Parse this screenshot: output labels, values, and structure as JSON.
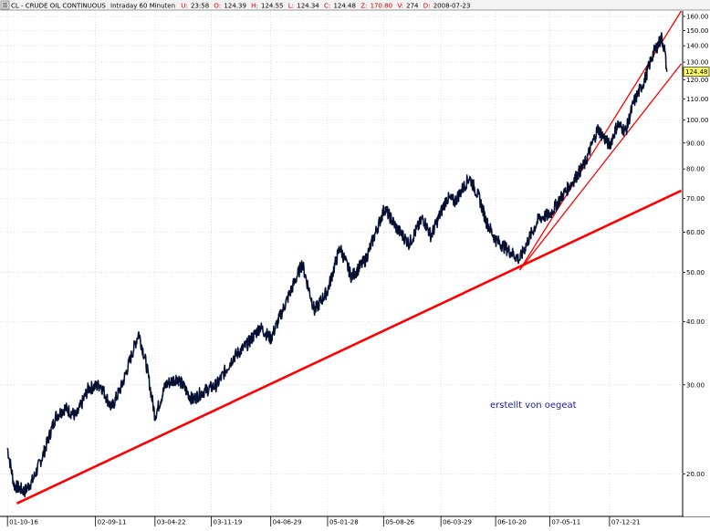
{
  "header": {
    "icon": "settings-icon",
    "symbol": "CL",
    "name": "- CRUDE OIL CONTINUOUS",
    "interval": "Intraday 60 Minuten",
    "readouts": [
      {
        "key": "U:",
        "value": "23:58"
      },
      {
        "key": "O:",
        "value": "124.39"
      },
      {
        "key": "H:",
        "value": "124.55"
      },
      {
        "key": "L:",
        "value": "124.34"
      },
      {
        "key": "C:",
        "value": "124.48"
      },
      {
        "key": "Z:",
        "value": "170.80"
      },
      {
        "key": "V:",
        "value": "274"
      },
      {
        "key": "D:",
        "value": "2008-07-23"
      }
    ]
  },
  "chart_data": {
    "type": "line",
    "title": "",
    "xlabel": "",
    "ylabel": "",
    "yscale": "log",
    "ylim": [
      16.5,
      164
    ],
    "x_tick_labels": [
      "01-10-16",
      "02-09-11",
      "03-04-22",
      "03-11-19",
      "04-06-29",
      "05-01-28",
      "05-08-26",
      "06-03-29",
      "06-10-20",
      "07-05-11",
      "07-12-21"
    ],
    "y_ticks": [
      20,
      30,
      40,
      50,
      60,
      70,
      80,
      90,
      100,
      110,
      120,
      130,
      140,
      150,
      160
    ],
    "y_tick_labels": [
      "20.00",
      "30.00",
      "40.00",
      "50.00",
      "60.00",
      "70.00",
      "80.00",
      "90.00",
      "100.00",
      "110.00",
      "120.00",
      "130.00",
      "140.00",
      "150.00",
      "160.00"
    ],
    "last_price_label": "124.48",
    "series": [
      {
        "color": "#0b1a4d",
        "dates": [
          "2001-10-16",
          "2001-11-10",
          "2001-12-20",
          "2002-01-20",
          "2002-03-01",
          "2002-04-15",
          "2002-05-20",
          "2002-07-01",
          "2002-08-15",
          "2002-09-30",
          "2002-11-10",
          "2002-12-20",
          "2003-02-20",
          "2003-03-20",
          "2003-04-22",
          "2003-06-01",
          "2003-07-15",
          "2003-09-10",
          "2003-10-15",
          "2003-12-10",
          "2004-02-10",
          "2004-04-01",
          "2004-05-20",
          "2004-06-29",
          "2004-08-20",
          "2004-10-25",
          "2004-12-10",
          "2005-01-28",
          "2005-03-15",
          "2005-04-28",
          "2005-06-20",
          "2005-08-30",
          "2005-10-15",
          "2005-11-30",
          "2006-01-20",
          "2006-02-20",
          "2006-04-20",
          "2006-05-20",
          "2006-07-14",
          "2006-08-20",
          "2006-09-15",
          "2006-10-20",
          "2007-01-18",
          "2007-02-20",
          "2007-04-01",
          "2007-05-11",
          "2007-06-20",
          "2007-08-01",
          "2007-09-20",
          "2007-11-07",
          "2007-12-21",
          "2008-01-20",
          "2008-02-20",
          "2008-03-20",
          "2008-05-01",
          "2008-06-01",
          "2008-07-03",
          "2008-07-14",
          "2008-07-23"
        ],
        "values": [
          22.5,
          19,
          18.5,
          19.5,
          22,
          26,
          27,
          26,
          29.5,
          30,
          27,
          30,
          38,
          33,
          26,
          30,
          31,
          28,
          29,
          30,
          34,
          36,
          39,
          37,
          43,
          52,
          42,
          46,
          56,
          49,
          53,
          67,
          61,
          57,
          64,
          59,
          70,
          69,
          77,
          70,
          63,
          58,
          53,
          58,
          64,
          65,
          70,
          75,
          82,
          96,
          89,
          98,
          95,
          108,
          120,
          135,
          145,
          138,
          124.48
        ]
      }
    ],
    "trendlines": [
      {
        "color": "#ff0000",
        "width": "thick",
        "x": [
          "2001-11-20",
          "2008-09-15"
        ],
        "y": [
          17.5,
          72.5
        ]
      },
      {
        "color": "#ff0000",
        "width": "thin",
        "x": [
          "2007-01-18",
          "2008-09-15"
        ],
        "y": [
          50.5,
          164
        ]
      },
      {
        "color": "#ff0000",
        "width": "thin",
        "x": [
          "2007-01-18",
          "2008-09-15"
        ],
        "y": [
          50.5,
          129
        ]
      }
    ],
    "annotations": [
      {
        "text": "erstellt von oegeat",
        "color": "#1a1aaa"
      }
    ]
  }
}
